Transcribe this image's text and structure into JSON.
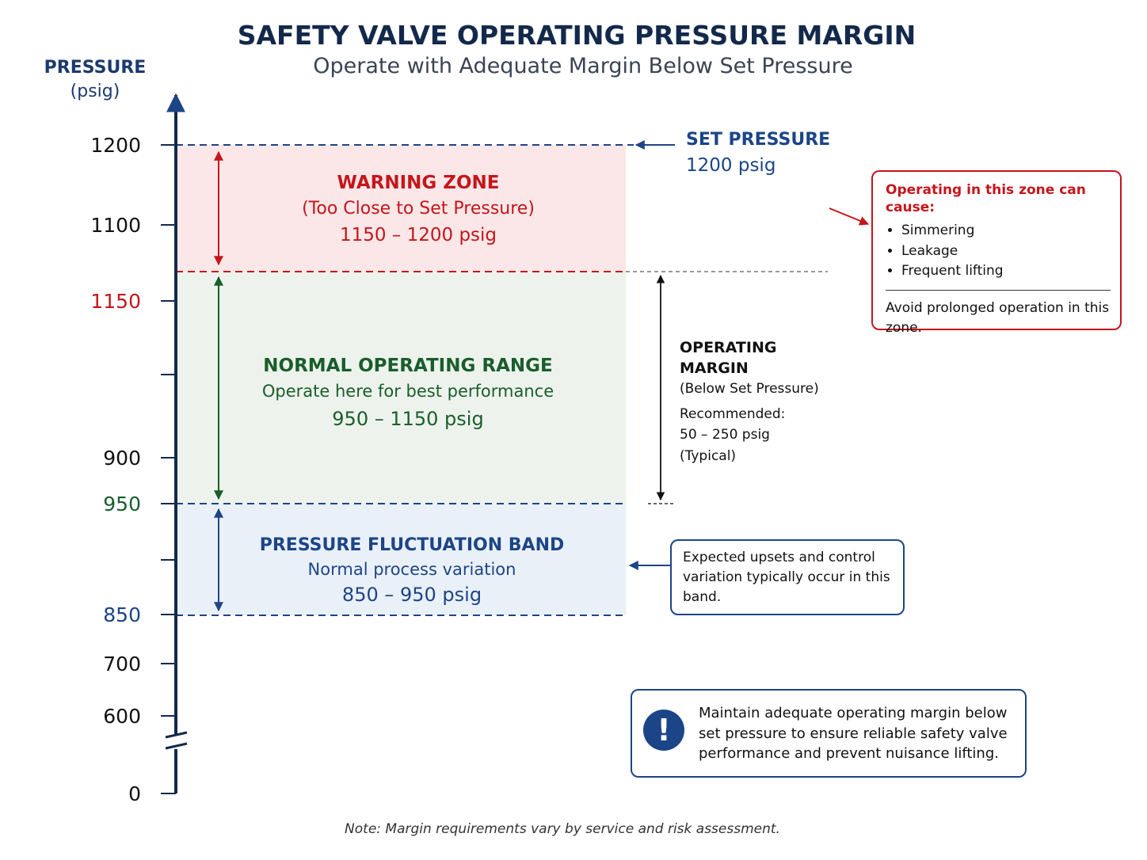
{
  "title": "SAFETY VALVE OPERATING PRESSURE MARGIN",
  "subtitle": "Operate with Adequate Margin Below Set Pressure",
  "axis": {
    "label": "PRESSURE",
    "unit": "(psig)",
    "ticks": [
      {
        "label": "1200",
        "color": "#111111"
      },
      {
        "label": "1100",
        "color": "#111111"
      },
      {
        "label": "1150",
        "color": "#c4161c"
      },
      {
        "label": "",
        "color": "#111111"
      },
      {
        "label": "900",
        "color": "#111111"
      },
      {
        "label": "950",
        "color": "#1a5d2c"
      },
      {
        "label": "",
        "color": "#111111"
      },
      {
        "label": "850",
        "color": "#1c4587"
      },
      {
        "label": "700",
        "color": "#111111"
      },
      {
        "label": "600",
        "color": "#111111"
      },
      {
        "label": "0",
        "color": "#111111"
      }
    ]
  },
  "zones": {
    "warning": {
      "title": "WARNING ZONE",
      "subtitle": "(Too Close to Set Pressure)",
      "range": "1150 – 1200 psig",
      "color": "#c4161c",
      "fill": "#fbe7e7"
    },
    "normal": {
      "title": "NORMAL OPERATING RANGE",
      "subtitle": "Operate here for best performance",
      "range": "950 – 1150 psig",
      "color": "#1a5d2c",
      "fill": "#edf3ec"
    },
    "fluctuation": {
      "title": "PRESSURE FLUCTUATION BAND",
      "subtitle": "Normal process variation",
      "range": "850 – 950 psig",
      "color": "#1c4587",
      "fill": "#eaf0f8"
    }
  },
  "set_pressure": {
    "label": "SET PRESSURE",
    "value": "1200 psig"
  },
  "operating_margin": {
    "title_line1": "OPERATING",
    "title_line2": "MARGIN",
    "qualifier": "(Below Set Pressure)",
    "recommended_label": "Recommended:",
    "recommended_value": "50 – 250 psig",
    "typical": "(Typical)"
  },
  "warning_box": {
    "heading": "Operating in this zone can cause:",
    "items": [
      "Simmering",
      "Leakage",
      "Frequent lifting"
    ],
    "note": "Avoid prolonged operation in this zone."
  },
  "fluctuation_box": {
    "text": "Expected upsets and control variation typically occur in this band."
  },
  "maintain_box": {
    "icon": "exclamation-icon",
    "text": "Maintain adequate operating margin below set pressure to ensure reliable safety valve performance and prevent nuisance lifting."
  },
  "footer_note": "Note: Margin requirements vary by service and risk assessment."
}
